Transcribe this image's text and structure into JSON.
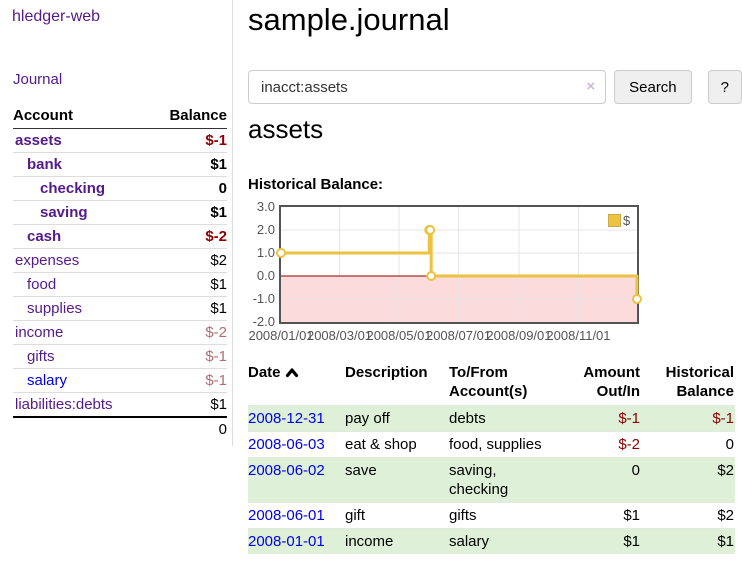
{
  "app": {
    "brand": "hledger-web",
    "nav_journal": "Journal"
  },
  "sidebar": {
    "accounts_header": {
      "account": "Account",
      "balance": "Balance"
    },
    "accounts": [
      {
        "name": "assets",
        "balance": "$-1"
      },
      {
        "name": "bank",
        "balance": "$1"
      },
      {
        "name": "checking",
        "balance": "0"
      },
      {
        "name": "saving",
        "balance": "$1"
      },
      {
        "name": "cash",
        "balance": "$-2"
      },
      {
        "name": "expenses",
        "balance": "$2"
      },
      {
        "name": "food",
        "balance": "$1"
      },
      {
        "name": "supplies",
        "balance": "$1"
      },
      {
        "name": "income",
        "balance": "$-2"
      },
      {
        "name": "gifts",
        "balance": "$-1"
      },
      {
        "name": "salary",
        "balance": "$-1"
      },
      {
        "name": "liabilities:debts",
        "balance": "$1"
      }
    ],
    "total": "0"
  },
  "header": {
    "title": "sample.journal"
  },
  "search": {
    "value": "inacct:assets",
    "clear_icon": "×",
    "button": "Search",
    "help_button": "?"
  },
  "account_page": {
    "title": "assets",
    "chart_label": "Historical Balance:"
  },
  "chart_data": {
    "type": "line",
    "title": "Historical Balance of assets",
    "series": [
      {
        "name": "$",
        "color": "#EDC240",
        "step": true,
        "points": [
          {
            "date": "2008-01-01",
            "day": 0,
            "value": 1
          },
          {
            "date": "2008-06-01",
            "day": 152,
            "value": 2
          },
          {
            "date": "2008-06-02",
            "day": 153,
            "value": 2
          },
          {
            "date": "2008-06-03",
            "day": 154,
            "value": 0
          },
          {
            "date": "2008-12-31",
            "day": 365,
            "value": -1
          }
        ]
      }
    ],
    "x_range_days": [
      0,
      365
    ],
    "ylim": [
      -2,
      3
    ],
    "y_ticks": [
      {
        "value": 3,
        "label": "3.0"
      },
      {
        "value": 2,
        "label": "2.0"
      },
      {
        "value": 1,
        "label": "1.0"
      },
      {
        "value": 0,
        "label": "0.0"
      },
      {
        "value": -1,
        "label": "-1.0"
      },
      {
        "value": -2,
        "label": "-2.0"
      }
    ],
    "x_ticks": [
      {
        "day": 0,
        "label": "2008/01/01"
      },
      {
        "day": 60,
        "label": "2008/03/01"
      },
      {
        "day": 121,
        "label": "2008/05/01"
      },
      {
        "day": 182,
        "label": "2008/07/01"
      },
      {
        "day": 244,
        "label": "2008/09/01"
      },
      {
        "day": 305,
        "label": "2008/11/01"
      }
    ],
    "y_gridlines": [
      2,
      1,
      -1
    ],
    "zero_line_color": "#8b0000",
    "negative_region_color": "#fbdbdb",
    "grid_color": "#e6e6e6",
    "border_color": "#545454",
    "legend_position": "top-right",
    "grid": true
  },
  "register": {
    "columns": [
      "Date",
      "Description",
      "To/From Account(s)",
      "Amount Out/In",
      "Historical Balance"
    ],
    "rows": [
      {
        "date": "2008-12-31",
        "description": "pay off",
        "accounts": "debts",
        "amount": "$-1",
        "balance": "$-1"
      },
      {
        "date": "2008-06-03",
        "description": "eat & shop",
        "accounts": "food, supplies",
        "amount": "$-2",
        "balance": "0"
      },
      {
        "date": "2008-06-02",
        "description": "save",
        "accounts": "saving, checking",
        "amount": "0",
        "balance": "$2"
      },
      {
        "date": "2008-06-01",
        "description": "gift",
        "accounts": "gifts",
        "amount": "$1",
        "balance": "$2"
      },
      {
        "date": "2008-01-01",
        "description": "income",
        "accounts": "salary",
        "amount": "$1",
        "balance": "$1"
      }
    ]
  }
}
